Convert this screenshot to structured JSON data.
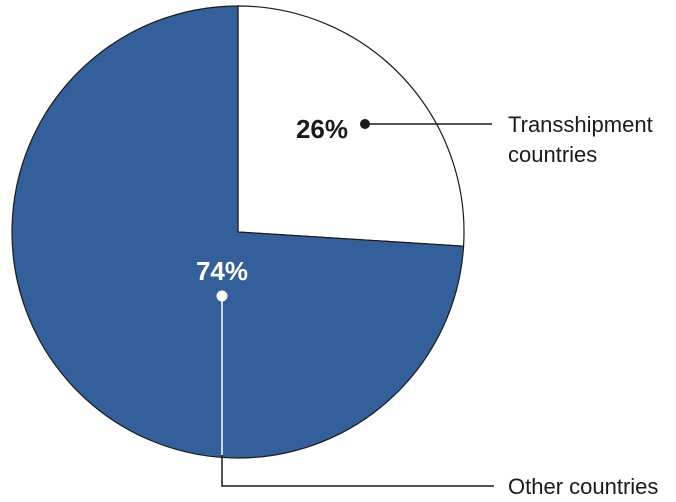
{
  "chart_data": {
    "type": "pie",
    "slices": [
      {
        "label": "Transshipment countries",
        "label_lines": [
          "Transshipment",
          "countries"
        ],
        "value": 26,
        "value_label": "26%",
        "color": "#ffffff",
        "text_color": "#1a1a1a"
      },
      {
        "label": "Other countries",
        "label_lines": [
          "Other countries"
        ],
        "value": 74,
        "value_label": "74%",
        "color": "#33609b",
        "text_color": "#ffffff"
      }
    ],
    "legend": "none",
    "start_angle": "12 o'clock",
    "direction": "clockwise"
  }
}
